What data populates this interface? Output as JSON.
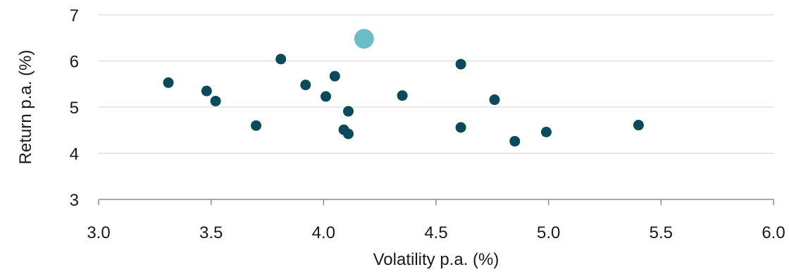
{
  "chart_data": {
    "type": "scatter",
    "xlabel": "Volatility p.a. (%)",
    "ylabel": "Return p.a. (%)",
    "xlim": [
      3.0,
      6.0
    ],
    "ylim": [
      3,
      7
    ],
    "x_ticks": [
      "3.0",
      "3.5",
      "4.0",
      "4.5",
      "5.0",
      "5.5",
      "6.0"
    ],
    "y_ticks": [
      "3",
      "4",
      "5",
      "6",
      "7"
    ],
    "grid": "horizontal",
    "legend": "none",
    "colors": {
      "points": "#0b4a5c",
      "highlight": "#6dbdc8",
      "grid": "#d4d4d4",
      "axis": "#8c8c8c"
    },
    "series": [
      {
        "points": [
          {
            "x": 3.31,
            "y": 5.53
          },
          {
            "x": 3.48,
            "y": 5.35
          },
          {
            "x": 3.52,
            "y": 5.13
          },
          {
            "x": 3.7,
            "y": 4.6
          },
          {
            "x": 3.81,
            "y": 6.04
          },
          {
            "x": 3.92,
            "y": 5.48
          },
          {
            "x": 4.01,
            "y": 5.23
          },
          {
            "x": 4.05,
            "y": 5.67
          },
          {
            "x": 4.09,
            "y": 4.51
          },
          {
            "x": 4.11,
            "y": 4.91
          },
          {
            "x": 4.11,
            "y": 4.42
          },
          {
            "x": 4.35,
            "y": 5.25
          },
          {
            "x": 4.61,
            "y": 5.93
          },
          {
            "x": 4.61,
            "y": 4.56
          },
          {
            "x": 4.76,
            "y": 5.16
          },
          {
            "x": 4.85,
            "y": 4.26
          },
          {
            "x": 4.99,
            "y": 4.46
          },
          {
            "x": 5.4,
            "y": 4.61
          }
        ]
      },
      {
        "highlight": true,
        "points": [
          {
            "x": 4.18,
            "y": 6.48
          }
        ]
      }
    ]
  }
}
